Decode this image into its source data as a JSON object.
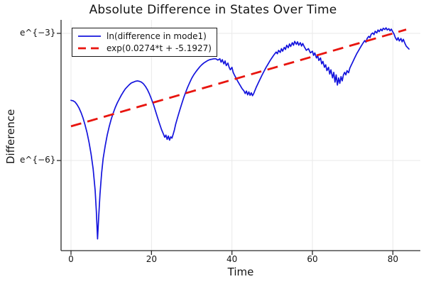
{
  "chart_data": {
    "type": "line",
    "title": "Absolute Difference in States Over Time",
    "xlabel": "Time",
    "ylabel": "Difference",
    "x_ticks": [
      0,
      20,
      40,
      60,
      80
    ],
    "y_ticks": [
      {
        "label": "e^{−3}",
        "value": -3
      },
      {
        "label": "e^{−6}",
        "value": -6
      }
    ],
    "xlim": [
      -2.5,
      86.8
    ],
    "ylim_ln": [
      -8.13,
      -2.68
    ],
    "y_scale": "log (natural), values stored as ln(difference)",
    "grid": true,
    "legend_position": "top-left",
    "colors": {
      "grid": "#e9e9e9",
      "spine": "#2a2a2a",
      "text": "#141414",
      "series_blue": "#1414dd",
      "series_red": "#e8150f",
      "background": "#ffffff"
    },
    "series": [
      {
        "name": "ln(difference in mode1)",
        "color": "#1414dd",
        "style": "solid",
        "width": 1.7,
        "points": [
          [
            0,
            -4.58
          ],
          [
            0.5,
            -4.59
          ],
          [
            1,
            -4.62
          ],
          [
            1.5,
            -4.68
          ],
          [
            2,
            -4.76
          ],
          [
            2.5,
            -4.87
          ],
          [
            3,
            -5.0
          ],
          [
            3.5,
            -5.16
          ],
          [
            4,
            -5.35
          ],
          [
            4.5,
            -5.58
          ],
          [
            5,
            -5.85
          ],
          [
            5.5,
            -6.2
          ],
          [
            6,
            -6.7
          ],
          [
            6.3,
            -7.2
          ],
          [
            6.6,
            -7.85
          ],
          [
            6.9,
            -7.3
          ],
          [
            7.2,
            -6.8
          ],
          [
            7.6,
            -6.3
          ],
          [
            8,
            -5.95
          ],
          [
            8.5,
            -5.65
          ],
          [
            9,
            -5.4
          ],
          [
            9.5,
            -5.2
          ],
          [
            10,
            -5.02
          ],
          [
            10.5,
            -4.88
          ],
          [
            11,
            -4.75
          ],
          [
            11.5,
            -4.64
          ],
          [
            12,
            -4.55
          ],
          [
            12.5,
            -4.46
          ],
          [
            13,
            -4.38
          ],
          [
            13.5,
            -4.31
          ],
          [
            14,
            -4.26
          ],
          [
            14.5,
            -4.21
          ],
          [
            15,
            -4.17
          ],
          [
            15.5,
            -4.15
          ],
          [
            16,
            -4.13
          ],
          [
            16.5,
            -4.12
          ],
          [
            17,
            -4.13
          ],
          [
            17.5,
            -4.15
          ],
          [
            18,
            -4.19
          ],
          [
            18.5,
            -4.25
          ],
          [
            19,
            -4.33
          ],
          [
            19.5,
            -4.43
          ],
          [
            20,
            -4.55
          ],
          [
            20.5,
            -4.68
          ],
          [
            21,
            -4.83
          ],
          [
            21.5,
            -4.98
          ],
          [
            22,
            -5.13
          ],
          [
            22.5,
            -5.27
          ],
          [
            23,
            -5.38
          ],
          [
            23.3,
            -5.45
          ],
          [
            23.6,
            -5.4
          ],
          [
            23.9,
            -5.5
          ],
          [
            24.2,
            -5.42
          ],
          [
            24.5,
            -5.52
          ],
          [
            24.8,
            -5.44
          ],
          [
            25.1,
            -5.47
          ],
          [
            25.4,
            -5.38
          ],
          [
            25.7,
            -5.28
          ],
          [
            26,
            -5.15
          ],
          [
            26.5,
            -4.98
          ],
          [
            27,
            -4.82
          ],
          [
            27.5,
            -4.67
          ],
          [
            28,
            -4.52
          ],
          [
            28.5,
            -4.39
          ],
          [
            29,
            -4.27
          ],
          [
            29.5,
            -4.16
          ],
          [
            30,
            -4.06
          ],
          [
            30.5,
            -3.98
          ],
          [
            31,
            -3.91
          ],
          [
            31.5,
            -3.85
          ],
          [
            32,
            -3.79
          ],
          [
            32.5,
            -3.74
          ],
          [
            33,
            -3.7
          ],
          [
            33.5,
            -3.67
          ],
          [
            34,
            -3.64
          ],
          [
            34.5,
            -3.62
          ],
          [
            35,
            -3.61
          ],
          [
            35.5,
            -3.6
          ],
          [
            36,
            -3.6
          ],
          [
            36.5,
            -3.63
          ],
          [
            37,
            -3.6
          ],
          [
            37.3,
            -3.68
          ],
          [
            37.6,
            -3.62
          ],
          [
            38,
            -3.72
          ],
          [
            38.3,
            -3.65
          ],
          [
            38.6,
            -3.76
          ],
          [
            39,
            -3.7
          ],
          [
            39.3,
            -3.8
          ],
          [
            39.6,
            -3.86
          ],
          [
            40,
            -3.8
          ],
          [
            40.3,
            -3.92
          ],
          [
            40.6,
            -3.98
          ],
          [
            41,
            -4.05
          ],
          [
            41.5,
            -4.14
          ],
          [
            42,
            -4.22
          ],
          [
            42.5,
            -4.3
          ],
          [
            43,
            -4.36
          ],
          [
            43.3,
            -4.42
          ],
          [
            43.6,
            -4.36
          ],
          [
            43.9,
            -4.45
          ],
          [
            44.2,
            -4.38
          ],
          [
            44.5,
            -4.46
          ],
          [
            44.8,
            -4.4
          ],
          [
            45.1,
            -4.47
          ],
          [
            45.4,
            -4.42
          ],
          [
            45.7,
            -4.35
          ],
          [
            46,
            -4.28
          ],
          [
            46.5,
            -4.18
          ],
          [
            47,
            -4.08
          ],
          [
            47.5,
            -3.98
          ],
          [
            48,
            -3.89
          ],
          [
            48.5,
            -3.8
          ],
          [
            49,
            -3.72
          ],
          [
            49.5,
            -3.64
          ],
          [
            50,
            -3.57
          ],
          [
            50.5,
            -3.5
          ],
          [
            51,
            -3.44
          ],
          [
            51.3,
            -3.48
          ],
          [
            51.6,
            -3.4
          ],
          [
            52,
            -3.45
          ],
          [
            52.3,
            -3.36
          ],
          [
            52.6,
            -3.42
          ],
          [
            53,
            -3.33
          ],
          [
            53.3,
            -3.38
          ],
          [
            53.6,
            -3.28
          ],
          [
            54,
            -3.34
          ],
          [
            54.3,
            -3.25
          ],
          [
            54.6,
            -3.31
          ],
          [
            55,
            -3.22
          ],
          [
            55.3,
            -3.28
          ],
          [
            55.6,
            -3.19
          ],
          [
            56,
            -3.26
          ],
          [
            56.3,
            -3.2
          ],
          [
            56.6,
            -3.28
          ],
          [
            57,
            -3.22
          ],
          [
            57.3,
            -3.3
          ],
          [
            57.6,
            -3.24
          ],
          [
            58,
            -3.32
          ],
          [
            58.5,
            -3.4
          ],
          [
            59,
            -3.36
          ],
          [
            59.5,
            -3.46
          ],
          [
            60,
            -3.42
          ],
          [
            60.3,
            -3.52
          ],
          [
            60.6,
            -3.46
          ],
          [
            61,
            -3.58
          ],
          [
            61.3,
            -3.52
          ],
          [
            61.6,
            -3.64
          ],
          [
            62,
            -3.58
          ],
          [
            62.3,
            -3.72
          ],
          [
            62.6,
            -3.66
          ],
          [
            63,
            -3.8
          ],
          [
            63.3,
            -3.74
          ],
          [
            63.6,
            -3.88
          ],
          [
            64,
            -3.8
          ],
          [
            64.3,
            -3.96
          ],
          [
            64.6,
            -3.86
          ],
          [
            65,
            -4.05
          ],
          [
            65.3,
            -3.92
          ],
          [
            65.6,
            -4.15
          ],
          [
            65.9,
            -3.98
          ],
          [
            66.2,
            -4.22
          ],
          [
            66.5,
            -4.05
          ],
          [
            66.8,
            -4.18
          ],
          [
            67.1,
            -4.02
          ],
          [
            67.4,
            -4.12
          ],
          [
            67.7,
            -3.98
          ],
          [
            68,
            -3.92
          ],
          [
            68.3,
            -3.98
          ],
          [
            68.6,
            -3.88
          ],
          [
            69,
            -3.93
          ],
          [
            69.3,
            -3.82
          ],
          [
            69.6,
            -3.76
          ],
          [
            70,
            -3.68
          ],
          [
            70.5,
            -3.58
          ],
          [
            71,
            -3.48
          ],
          [
            71.5,
            -3.4
          ],
          [
            72,
            -3.32
          ],
          [
            72.5,
            -3.24
          ],
          [
            73,
            -3.17
          ],
          [
            73.3,
            -3.21
          ],
          [
            73.6,
            -3.12
          ],
          [
            74,
            -3.07
          ],
          [
            74.3,
            -3.1
          ],
          [
            74.6,
            -3.02
          ],
          [
            75,
            -2.99
          ],
          [
            75.3,
            -3.03
          ],
          [
            75.6,
            -2.95
          ],
          [
            76,
            -2.99
          ],
          [
            76.3,
            -2.92
          ],
          [
            76.6,
            -2.96
          ],
          [
            77,
            -2.9
          ],
          [
            77.3,
            -2.94
          ],
          [
            77.6,
            -2.88
          ],
          [
            78,
            -2.91
          ],
          [
            78.3,
            -2.87
          ],
          [
            78.6,
            -2.92
          ],
          [
            79,
            -2.89
          ],
          [
            79.3,
            -2.94
          ],
          [
            79.6,
            -2.9
          ],
          [
            80,
            -2.97
          ],
          [
            80.3,
            -3.02
          ],
          [
            80.6,
            -3.1
          ],
          [
            81,
            -3.16
          ],
          [
            81.3,
            -3.1
          ],
          [
            81.6,
            -3.18
          ],
          [
            82,
            -3.12
          ],
          [
            82.3,
            -3.2
          ],
          [
            82.6,
            -3.14
          ],
          [
            83,
            -3.24
          ],
          [
            83.3,
            -3.3
          ],
          [
            83.6,
            -3.33
          ],
          [
            84,
            -3.37
          ]
        ]
      },
      {
        "name": "exp(0.0274*t + -5.1927)",
        "color": "#e8150f",
        "style": "dashed",
        "width": 2.8,
        "fit": {
          "slope": 0.0274,
          "intercept": -5.1927,
          "t_start": 0,
          "t_end": 83.3
        }
      }
    ]
  }
}
